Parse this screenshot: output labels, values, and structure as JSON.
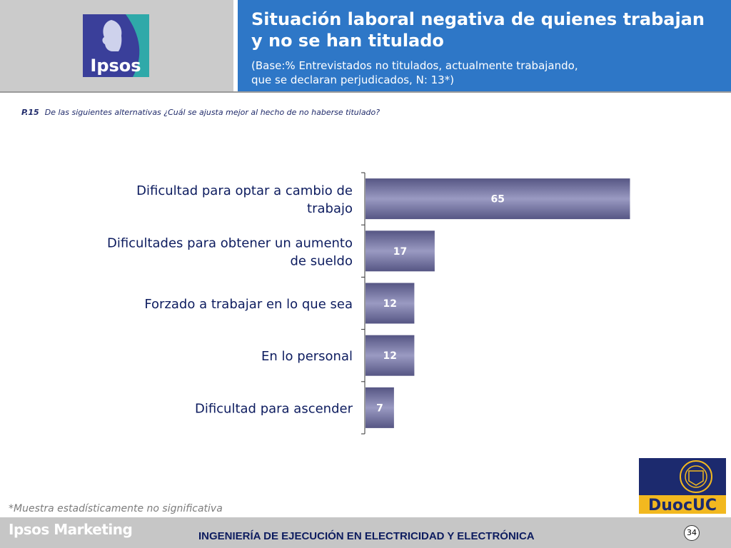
{
  "header": {
    "logo_text": "Ipsos",
    "title": "Situación laboral negativa de quienes trabajan y no se han titulado",
    "subtitle": "(Base:% Entrevistados no titulados, actualmente trabajando,\nque se declaran perjudicados, N: 13*)"
  },
  "question": {
    "number": "P.15",
    "text": "De las siguientes alternativas ¿Cuál se ajusta mejor al hecho de no haberse titulado?"
  },
  "chart_data": {
    "type": "bar",
    "orientation": "horizontal",
    "categories": [
      "Dificultad para optar a cambio de trabajo",
      "Dificultades para obtener un aumento de sueldo",
      "Forzado a trabajar en lo que sea",
      "En lo personal",
      "Dificultad para ascender"
    ],
    "values": [
      65,
      17,
      12,
      12,
      7
    ],
    "data_labels": [
      "65",
      "17",
      "12",
      "12",
      "7"
    ],
    "xlim": [
      0,
      100
    ],
    "grid": false,
    "legend": "none",
    "bar_color": "#6a6a9a"
  },
  "footnote": "*Muestra estadísticamente no significativa",
  "footer": {
    "brand": "Ipsos Marketing",
    "program": "INGENIERÍA DE EJECUCIÓN EN ELECTRICIDAD Y ELECTRÓNICA",
    "page": "34",
    "partner_logo_text": "DuocUC"
  },
  "colors": {
    "header_blue": "#2e77c7",
    "header_gray": "#cbcbcb",
    "footer_gray": "#c6c6c6",
    "text_navy": "#0d1c5f",
    "duoc_blue": "#1c2a6e",
    "duoc_gold": "#f2b81f"
  }
}
